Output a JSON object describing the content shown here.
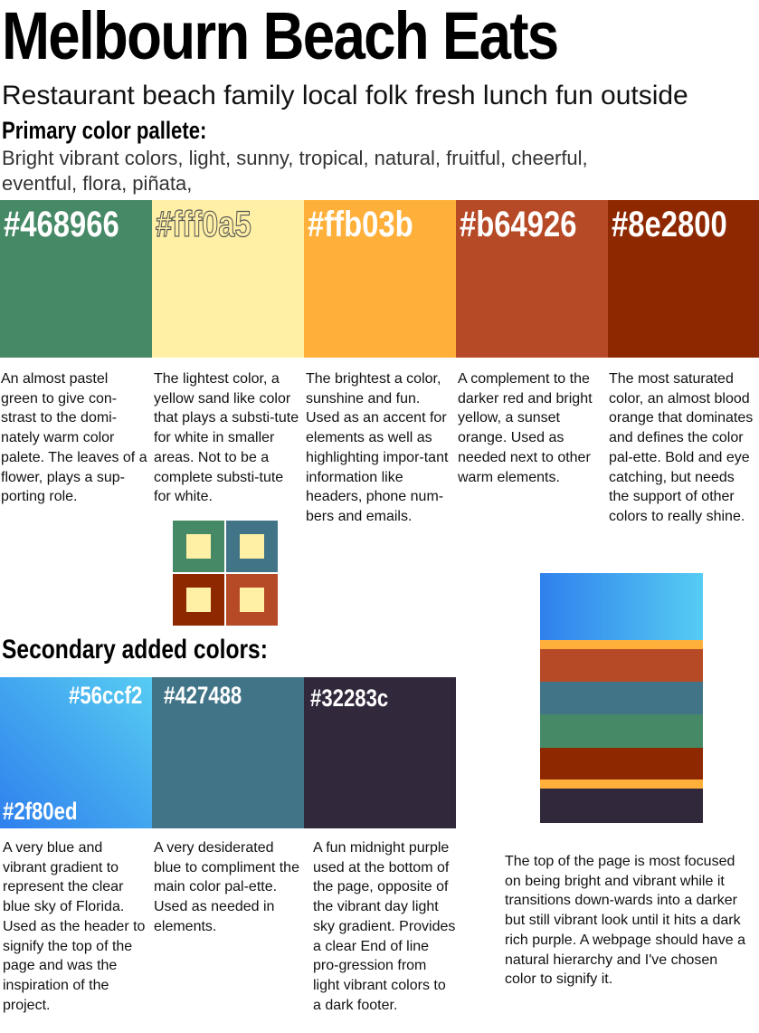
{
  "header": {
    "title": "Melbourn Beach Eats",
    "subtitle": "Restaurant beach family local folk fresh lunch fun outside"
  },
  "primary": {
    "heading": "Primary color pallete:",
    "keywords": "Bright vibrant colors,  light, sunny, tropical, natural, fruitful, cheerful, eventful, flora, piñata,",
    "swatches": [
      {
        "hex": "#468966",
        "color": "#468966",
        "description": "An almost pastel green to give con-strast to the domi-nately warm color palete. The leaves of a flower, plays a sup-porting role."
      },
      {
        "hex": "#fff0a5",
        "color": "#fff0a5",
        "description": "The lightest color, a yellow sand like color that plays a substi-tute for white in smaller areas. Not to be a complete substi-tute for white."
      },
      {
        "hex": "#ffb03b",
        "color": "#ffb03b",
        "description": "The brightest a color, sunshine and fun. Used as an accent for elements as well as highlighting impor-tant information like headers, phone num-bers and emails."
      },
      {
        "hex": "#b64926",
        "color": "#b64926",
        "description": "A complement to the darker red and bright yellow, a sunset orange. Used as needed next to other warm elements."
      },
      {
        "hex": "#8e2800",
        "color": "#8e2800",
        "description": "The most saturated color, an almost blood orange that dominates and defines the color pal-ette. Bold and eye catching, but needs the support of other colors to really shine."
      }
    ],
    "mosaic_colors": [
      "#468966",
      "#427488",
      "#8e2800",
      "#b64926"
    ]
  },
  "secondary": {
    "heading": "Secondary added colors:",
    "swatches": [
      {
        "hex_top": "#56ccf2",
        "hex_bottom": "#2f80ed",
        "gradient_from": "#2f80ed",
        "gradient_to": "#56ccf2",
        "description": "A very blue and vibrant gradient to represent the clear blue sky of Florida. Used as the header to signify the top of the page and was the inspiration of the project."
      },
      {
        "hex": "#427488",
        "color": "#427488",
        "description": "A very desiderated blue to compliment the main color pal-ette. Used as needed in elements."
      },
      {
        "hex": "#32283c",
        "color": "#32283c",
        "description": "A fun midnight purple used at the bottom of the page, opposite of the vibrant day light sky gradient. Provides a clear End of line pro-gression from light vibrant colors to a dark footer."
      }
    ]
  },
  "hierarchy": {
    "stripes": [
      "gradient",
      "#ffb03b",
      "#b64926",
      "#427488",
      "#468966",
      "#8e2800",
      "#ffb03b",
      "#32283c"
    ],
    "description": "The top of the page is most focused on being bright and vibrant while it transitions down-wards into a darker but still vibrant look until it hits a dark rich purple. A webpage should have a natural hierarchy and I've chosen color to signify it."
  }
}
